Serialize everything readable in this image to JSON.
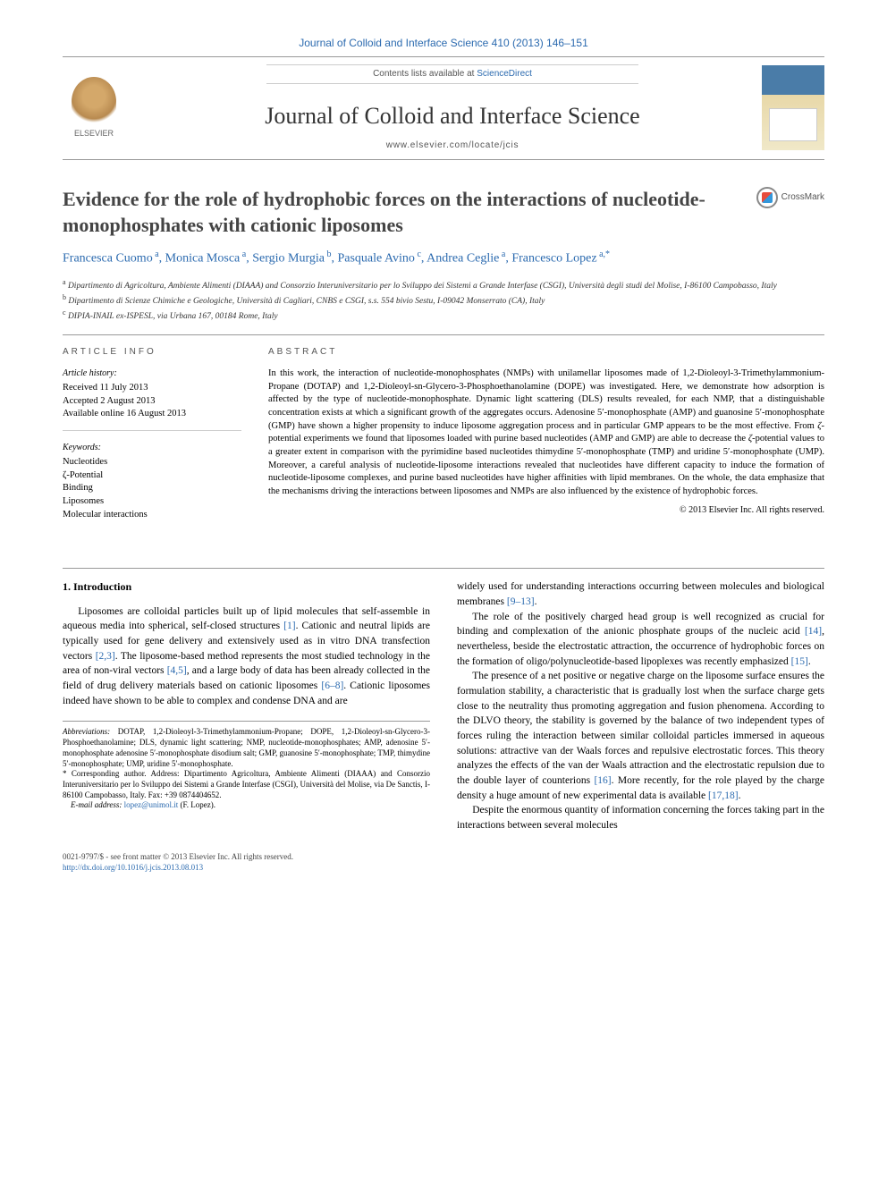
{
  "header": {
    "citation_line": "Journal of Colloid and Interface Science 410 (2013) 146–151",
    "contents_prefix": "Contents lists available at ",
    "sciencedirect": "ScienceDirect",
    "journal_name": "Journal of Colloid and Interface Science",
    "journal_url": "www.elsevier.com/locate/jcis",
    "elsevier_label": "ELSEVIER",
    "crossmark_label": "CrossMark"
  },
  "colors": {
    "link": "#2b6aaf",
    "text": "#000000",
    "muted": "#555555",
    "rule": "#999999"
  },
  "title": "Evidence for the role of hydrophobic forces on the interactions of nucleotide-monophosphates with cationic liposomes",
  "authors_html": "Francesca Cuomo<sup> a</sup>, Monica Mosca<sup> a</sup>, Sergio Murgia<sup> b</sup>, Pasquale Avino<sup> c</sup>, Andrea Ceglie<sup> a</sup>, Francesco Lopez<sup> a,*</sup>",
  "affiliations": [
    {
      "sup": "a",
      "text": "Dipartimento di Agricoltura, Ambiente Alimenti (DIAAA) and Consorzio Interuniversitario per lo Sviluppo dei Sistemi a Grande Interfase (CSGI), Università degli studi del Molise, I-86100 Campobasso, Italy"
    },
    {
      "sup": "b",
      "text": "Dipartimento di Scienze Chimiche e Geologiche, Università di Cagliari, CNBS e CSGI, s.s. 554 bivio Sestu, I-09042 Monserrato (CA), Italy"
    },
    {
      "sup": "c",
      "text": "DIPIA-INAIL ex-ISPESL, via Urbana 167, 00184 Rome, Italy"
    }
  ],
  "article_info": {
    "heading": "ARTICLE INFO",
    "history_title": "Article history:",
    "history": [
      "Received 11 July 2013",
      "Accepted 2 August 2013",
      "Available online 16 August 2013"
    ],
    "keywords_title": "Keywords:",
    "keywords": [
      "Nucleotides",
      "ζ-Potential",
      "Binding",
      "Liposomes",
      "Molecular interactions"
    ]
  },
  "abstract": {
    "heading": "ABSTRACT",
    "text": "In this work, the interaction of nucleotide-monophosphates (NMPs) with unilamellar liposomes made of 1,2-Dioleoyl-3-Trimethylammonium-Propane (DOTAP) and 1,2-Dioleoyl-sn-Glycero-3-Phosphoethanolamine (DOPE) was investigated. Here, we demonstrate how adsorption is affected by the type of nucleotide-monophosphate. Dynamic light scattering (DLS) results revealed, for each NMP, that a distinguishable concentration exists at which a significant growth of the aggregates occurs. Adenosine 5′-monophosphate (AMP) and guanosine 5′-monophosphate (GMP) have shown a higher propensity to induce liposome aggregation process and in particular GMP appears to be the most effective. From ζ-potential experiments we found that liposomes loaded with purine based nucleotides (AMP and GMP) are able to decrease the ζ-potential values to a greater extent in comparison with the pyrimidine based nucleotides thimydine 5′-monophosphate (TMP) and uridine 5′-monophosphate (UMP). Moreover, a careful analysis of nucleotide-liposome interactions revealed that nucleotides have different capacity to induce the formation of nucleotide-liposome complexes, and purine based nucleotides have higher affinities with lipid membranes. On the whole, the data emphasize that the mechanisms driving the interactions between liposomes and NMPs are also influenced by the existence of hydrophobic forces.",
    "copyright": "© 2013 Elsevier Inc. All rights reserved."
  },
  "body": {
    "section_heading": "1. Introduction",
    "p1": "Liposomes are colloidal particles built up of lipid molecules that self-assemble in aqueous media into spherical, self-closed structures [1]. Cationic and neutral lipids are typically used for gene delivery and extensively used as in vitro DNA transfection vectors [2,3]. The liposome-based method represents the most studied technology in the area of non-viral vectors [4,5], and a large body of data has been already collected in the field of drug delivery materials based on cationic liposomes [6–8]. Cationic liposomes indeed have shown to be able to complex and condense DNA and are",
    "p2": "widely used for understanding interactions occurring between molecules and biological membranes [9–13].",
    "p3": "The role of the positively charged head group is well recognized as crucial for binding and complexation of the anionic phosphate groups of the nucleic acid [14], nevertheless, beside the electrostatic attraction, the occurrence of hydrophobic forces on the formation of oligo/polynucleotide-based lipoplexes was recently emphasized [15].",
    "p4": "The presence of a net positive or negative charge on the liposome surface ensures the formulation stability, a characteristic that is gradually lost when the surface charge gets close to the neutrality thus promoting aggregation and fusion phenomena. According to the DLVO theory, the stability is governed by the balance of two independent types of forces ruling the interaction between similar colloidal particles immersed in aqueous solutions: attractive van der Waals forces and repulsive electrostatic forces. This theory analyzes the effects of the van der Waals attraction and the electrostatic repulsion due to the double layer of counterions [16]. More recently, for the role played by the charge density a huge amount of new experimental data is available [17,18].",
    "p5": "Despite the enormous quantity of information concerning the forces taking part in the interactions between several molecules"
  },
  "footnotes": {
    "abbrev_label": "Abbreviations:",
    "abbrev_text": " DOTAP, 1,2-Dioleoyl-3-Trimethylammonium-Propane; DOPE, 1,2-Dioleoyl-sn-Glycero-3-Phosphoethanolamine; DLS, dynamic light scattering; NMP, nucleotide-monophosphates; AMP, adenosine 5′-monophosphate adenosine 5′-monophosphate disodium salt; GMP, guanosine 5′-monophosphate; TMP, thimydine 5′-monophosphate; UMP, uridine 5′-monophosphate.",
    "corr_label": "* Corresponding author. ",
    "corr_text": "Address: Dipartimento Agricoltura, Ambiente Alimenti (DIAAA) and Consorzio Interuniversitario per lo Sviluppo dei Sistemi a Grande Interfase (CSGI), Università del Molise, via De Sanctis, I-86100 Campobasso, Italy. Fax: +39 0874404652.",
    "email_label": "E-mail address: ",
    "email": "lopez@unimol.it",
    "email_paren": " (F. Lopez)."
  },
  "footer": {
    "issn_line": "0021-9797/$ - see front matter © 2013 Elsevier Inc. All rights reserved.",
    "doi": "http://dx.doi.org/10.1016/j.jcis.2013.08.013"
  }
}
